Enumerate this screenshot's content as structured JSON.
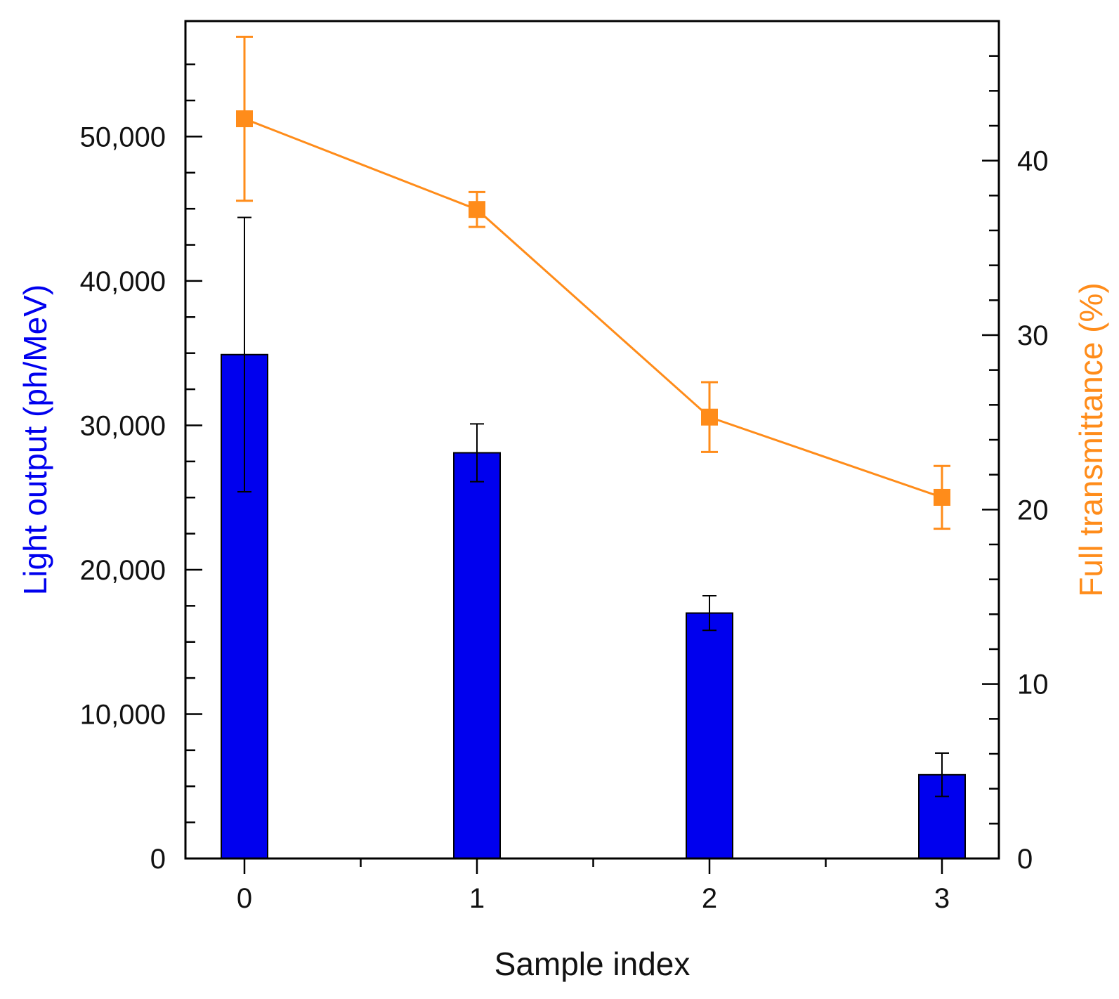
{
  "chart_data": {
    "type": "bar",
    "title": "",
    "categories": [
      "0",
      "1",
      "2",
      "3"
    ],
    "xlabel": "Sample index",
    "ylabel": "Light output (ph/MeV)",
    "y2label": "Full transmittance (%)",
    "ylim": [
      0,
      58000
    ],
    "y2lim": [
      0,
      48
    ],
    "yticks": [
      "0",
      "10,000",
      "20,000",
      "30,000",
      "40,000",
      "50,000"
    ],
    "y2ticks": [
      "0",
      "10",
      "20",
      "30",
      "40"
    ],
    "grid": false,
    "series": [
      {
        "type": "bar",
        "axis": "left",
        "color": "#0000ee",
        "values": [
          34900,
          28100,
          17000,
          5800
        ],
        "errors": [
          9500,
          2000,
          1200,
          1500
        ]
      },
      {
        "type": "line",
        "axis": "right",
        "color": "#ff8c1a",
        "marker": "square",
        "values": [
          42.4,
          37.2,
          25.3,
          20.7
        ],
        "errors": [
          4.7,
          1.0,
          2.0,
          1.8
        ]
      }
    ]
  }
}
